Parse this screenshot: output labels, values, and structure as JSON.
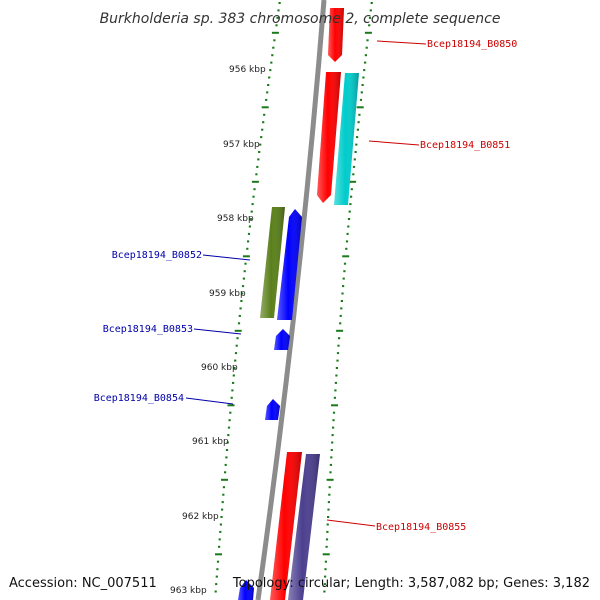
{
  "title": "Burkholderia sp. 383 chromosome 2, complete sequence",
  "footer": {
    "accession": "Accession: NC_007511",
    "summary": "Topology: circular; Length: 3,587,082 bp; Genes: 3,182"
  },
  "colors": {
    "backbone": "#888888",
    "ticks": "#1a7a1a",
    "forward_label": "#cc0000",
    "reverse_label": "#0000aa"
  },
  "kbp_labels": [
    "956 kbp",
    "957 kbp",
    "958 kbp",
    "959 kbp",
    "960 kbp",
    "961 kbp",
    "962 kbp",
    "963 kbp"
  ],
  "genes": [
    {
      "label": "Bcep18194_B0850",
      "color": "#ff0000",
      "strand": "forward"
    },
    {
      "label": "Bcep18194_B0851",
      "color": "#ff0000",
      "strand": "forward"
    },
    {
      "label": "",
      "color": "#00cccc",
      "strand": "forward"
    },
    {
      "label": "Bcep18194_B0852",
      "color": "#5a7f1a",
      "strand": "reverse"
    },
    {
      "label": "",
      "color": "#0000ff",
      "strand": "reverse"
    },
    {
      "label": "Bcep18194_B0853",
      "color": "#0000ff",
      "strand": "reverse"
    },
    {
      "label": "Bcep18194_B0854",
      "color": "#0000ff",
      "strand": "reverse"
    },
    {
      "label": "Bcep18194_B0855",
      "color": "#ff0000",
      "strand": "forward"
    },
    {
      "label": "",
      "color": "#4b3f8f",
      "strand": "forward"
    },
    {
      "label": "",
      "color": "#0000ff",
      "strand": "reverse"
    }
  ]
}
